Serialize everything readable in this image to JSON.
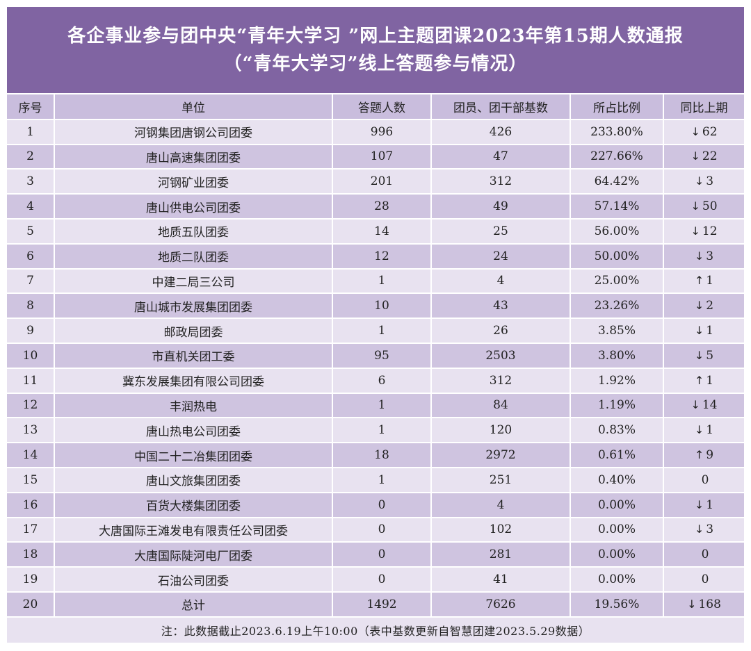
{
  "title": {
    "line1": "各企事业参与团中央“青年大学习 ”网上主题团课2023年第15期人数通报",
    "line2": "（“青年大学习”线上答题参与情况）"
  },
  "headers": [
    "序号",
    "单位",
    "答题人数",
    "团员、团干部基数",
    "所占比例",
    "同比上期"
  ],
  "rows": [
    {
      "no": "1",
      "unit": "河钢集团唐钢公司团委",
      "answered": "996",
      "base": "426",
      "ratio": "233.80%",
      "dir": "down",
      "change": "62"
    },
    {
      "no": "2",
      "unit": "唐山高速集团团委",
      "answered": "107",
      "base": "47",
      "ratio": "227.66%",
      "dir": "down",
      "change": "22"
    },
    {
      "no": "3",
      "unit": "河钢矿业团委",
      "answered": "201",
      "base": "312",
      "ratio": "64.42%",
      "dir": "down",
      "change": "3"
    },
    {
      "no": "4",
      "unit": "唐山供电公司团委",
      "answered": "28",
      "base": "49",
      "ratio": "57.14%",
      "dir": "down",
      "change": "50"
    },
    {
      "no": "5",
      "unit": "地质五队团委",
      "answered": "14",
      "base": "25",
      "ratio": "56.00%",
      "dir": "down",
      "change": "12"
    },
    {
      "no": "6",
      "unit": "地质二队团委",
      "answered": "12",
      "base": "24",
      "ratio": "50.00%",
      "dir": "down",
      "change": "3"
    },
    {
      "no": "7",
      "unit": "中建二局三公司",
      "answered": "1",
      "base": "4",
      "ratio": "25.00%",
      "dir": "up",
      "change": "1"
    },
    {
      "no": "8",
      "unit": "唐山城市发展集团团委",
      "answered": "10",
      "base": "43",
      "ratio": "23.26%",
      "dir": "down",
      "change": "2"
    },
    {
      "no": "9",
      "unit": "邮政局团委",
      "answered": "1",
      "base": "26",
      "ratio": "3.85%",
      "dir": "down",
      "change": "1"
    },
    {
      "no": "10",
      "unit": "市直机关团工委",
      "answered": "95",
      "base": "2503",
      "ratio": "3.80%",
      "dir": "down",
      "change": "5"
    },
    {
      "no": "11",
      "unit": "冀东发展集团有限公司团委",
      "answered": "6",
      "base": "312",
      "ratio": "1.92%",
      "dir": "up",
      "change": "1"
    },
    {
      "no": "12",
      "unit": "丰润热电",
      "answered": "1",
      "base": "84",
      "ratio": "1.19%",
      "dir": "down",
      "change": "14"
    },
    {
      "no": "13",
      "unit": "唐山热电公司团委",
      "answered": "1",
      "base": "120",
      "ratio": "0.83%",
      "dir": "down",
      "change": "1"
    },
    {
      "no": "14",
      "unit": "中国二十二冶集团团委",
      "answered": "18",
      "base": "2972",
      "ratio": "0.61%",
      "dir": "up",
      "change": "9"
    },
    {
      "no": "15",
      "unit": "唐山文旅集团团委",
      "answered": "1",
      "base": "251",
      "ratio": "0.40%",
      "dir": "none",
      "change": "0"
    },
    {
      "no": "16",
      "unit": "百货大楼集团团委",
      "answered": "0",
      "base": "4",
      "ratio": "0.00%",
      "dir": "down",
      "change": "1"
    },
    {
      "no": "17",
      "unit": "大唐国际王滩发电有限责任公司团委",
      "answered": "0",
      "base": "102",
      "ratio": "0.00%",
      "dir": "down",
      "change": "3"
    },
    {
      "no": "18",
      "unit": "大唐国际陡河电厂团委",
      "answered": "0",
      "base": "281",
      "ratio": "0.00%",
      "dir": "none",
      "change": "0"
    },
    {
      "no": "19",
      "unit": "石油公司团委",
      "answered": "0",
      "base": "41",
      "ratio": "0.00%",
      "dir": "none",
      "change": "0"
    },
    {
      "no": "20",
      "unit": "总计",
      "answered": "1492",
      "base": "7626",
      "ratio": "19.56%",
      "dir": "down",
      "change": "168"
    }
  ],
  "arrows": {
    "up": "↑",
    "down": "↓",
    "none": ""
  },
  "note": "注：此数据截止2023.6.19上午10:00（表中基数更新自智慧团建2023.5.29数据）",
  "colors": {
    "header_bg": "#8064a2",
    "row_light": "#e8e2f0",
    "row_dark": "#cfc4e0"
  }
}
